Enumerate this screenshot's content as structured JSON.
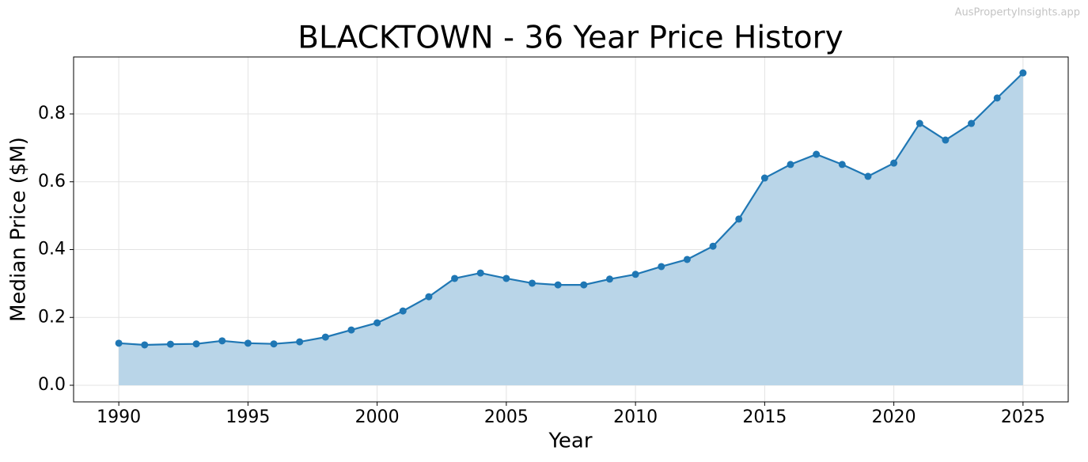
{
  "watermark": "AusPropertyInsights.app",
  "chart_data": {
    "type": "line",
    "title": "BLACKTOWN - 36 Year Price History",
    "x_label": "Year",
    "y_label": "Median Price ($M)",
    "x": [
      1990,
      1991,
      1992,
      1993,
      1994,
      1995,
      1996,
      1997,
      1998,
      1999,
      2000,
      2001,
      2002,
      2003,
      2004,
      2005,
      2006,
      2007,
      2008,
      2009,
      2010,
      2011,
      2012,
      2013,
      2014,
      2015,
      2016,
      2017,
      2018,
      2019,
      2020,
      2021,
      2022,
      2023,
      2024,
      2025
    ],
    "values": [
      0.124,
      0.119,
      0.121,
      0.122,
      0.131,
      0.124,
      0.122,
      0.128,
      0.142,
      0.163,
      0.184,
      0.219,
      0.261,
      0.315,
      0.331,
      0.315,
      0.301,
      0.296,
      0.296,
      0.313,
      0.327,
      0.35,
      0.371,
      0.41,
      0.49,
      0.611,
      0.651,
      0.681,
      0.651,
      0.616,
      0.655,
      0.772,
      0.723,
      0.772,
      0.847,
      0.921
    ],
    "color": "#1f77b4",
    "area_color": "#b9d5e8",
    "fill_area": true,
    "markers": true,
    "grid": true,
    "xlim": [
      1988.25,
      2026.75
    ],
    "xticks": [
      1990,
      1995,
      2000,
      2005,
      2010,
      2015,
      2020,
      2025
    ],
    "ylim": [
      -0.049,
      0.968
    ],
    "yticks": [
      {
        "value": 0,
        "label": "0.0"
      },
      0.2,
      0.4,
      0.6,
      0.8
    ]
  }
}
